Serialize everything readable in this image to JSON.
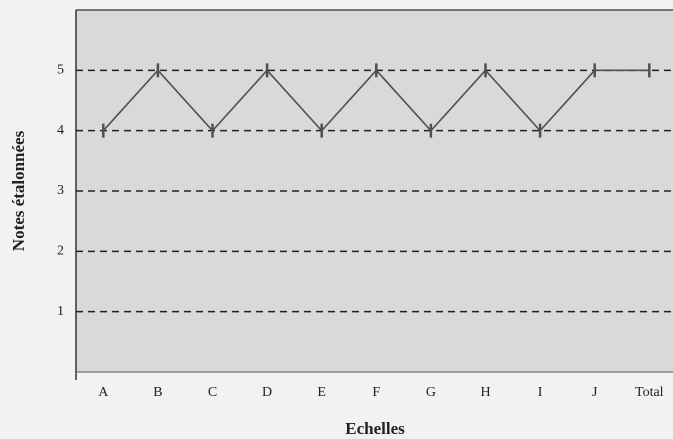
{
  "chart_data": {
    "type": "line",
    "x_label": "Echelles",
    "y_label": "Notes étalonnées",
    "categories": [
      "A",
      "B",
      "C",
      "D",
      "E",
      "F",
      "G",
      "H",
      "I",
      "J",
      "Total"
    ],
    "values": [
      4,
      5,
      4,
      5,
      4,
      5,
      4,
      5,
      4,
      5,
      5
    ],
    "color": "#505050",
    "ylim": [
      0,
      6
    ],
    "yticks": [
      1,
      2,
      3,
      4,
      5
    ],
    "grid": true
  }
}
